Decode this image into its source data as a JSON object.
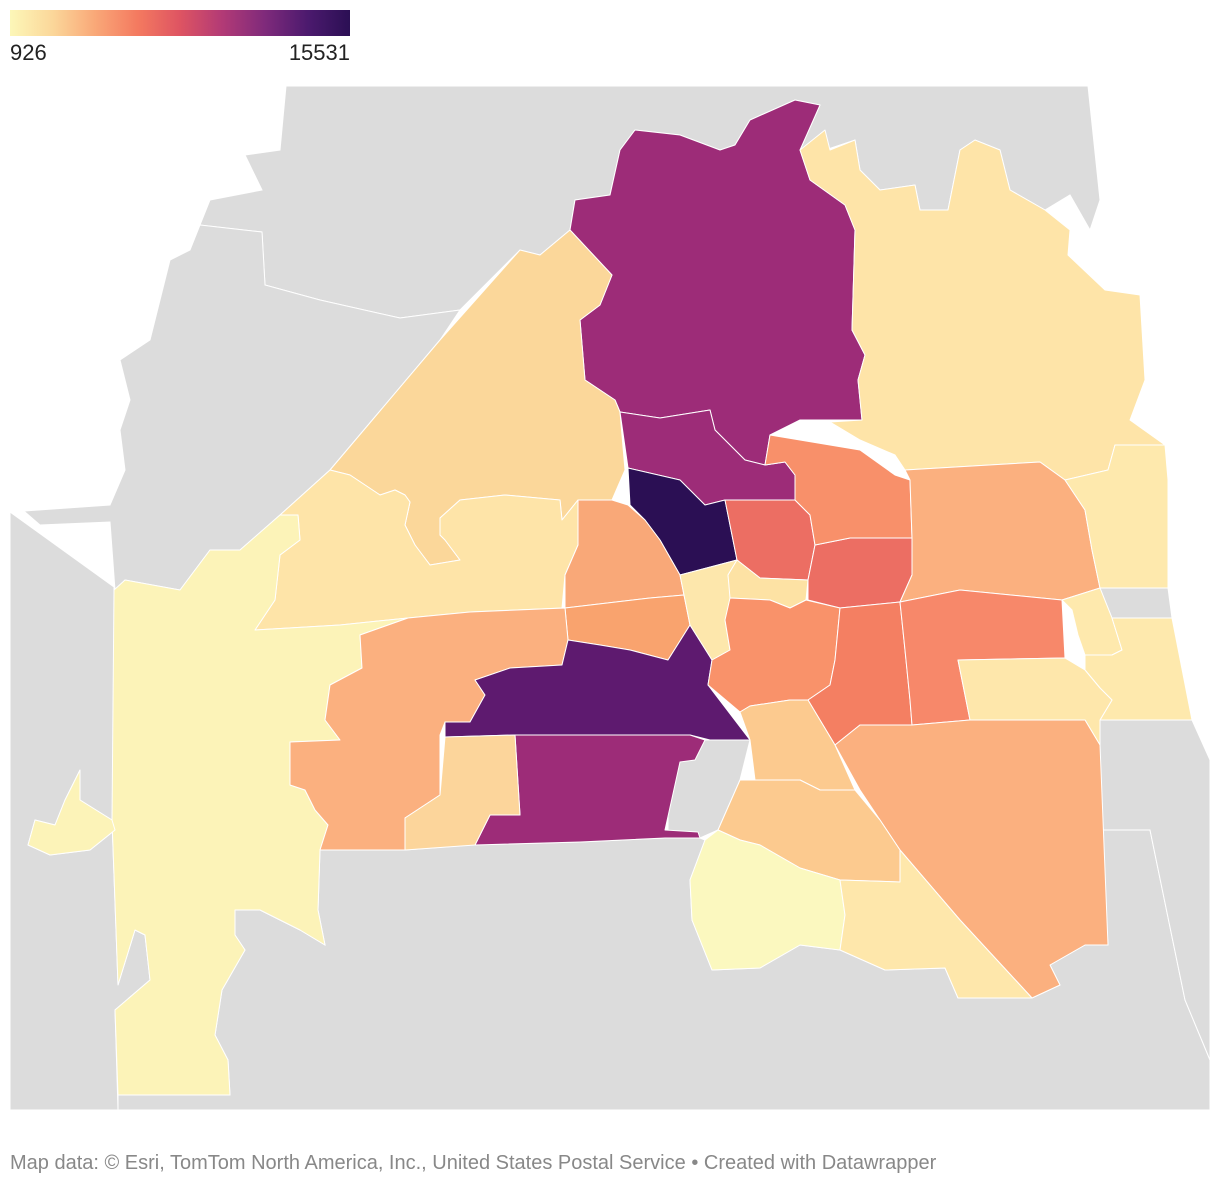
{
  "legend": {
    "min_label": "926",
    "max_label": "15531",
    "min_value": 926,
    "max_value": 15531,
    "gradient": [
      "#fcf7b8",
      "#fbd79a",
      "#f9a878",
      "#f47a60",
      "#de5462",
      "#b23a76",
      "#7f2a7b",
      "#4c1a6e",
      "#2b0f54"
    ]
  },
  "colors": {
    "background_region": "#dcdcdc",
    "region_stroke": "#ffffff"
  },
  "footer": {
    "source": "Map data: © Esri, TomTom North America, Inc., United States Postal Service",
    "separator": "•",
    "credit": "Created with Datawrapper"
  },
  "map_regions": [
    {
      "id": "north-large",
      "fill": "#9d2c78"
    },
    {
      "id": "northeast-large",
      "fill": "#fee4a8"
    },
    {
      "id": "northwest-diagonal",
      "fill": "#fbd79a"
    },
    {
      "id": "north-center-small",
      "fill": "#9d2c78"
    },
    {
      "id": "center-darkest",
      "fill": "#2b0f54"
    },
    {
      "id": "west-strip",
      "fill": "#fee4a8"
    },
    {
      "id": "west-large",
      "fill": "#fcf3b8"
    },
    {
      "id": "center-west-orange",
      "fill": "#f9a878"
    },
    {
      "id": "center-west-2",
      "fill": "#f9a36e"
    },
    {
      "id": "center-west-3",
      "fill": "#fbb07f"
    },
    {
      "id": "center-purple",
      "fill": "#5e1a6f"
    },
    {
      "id": "south-center-purple",
      "fill": "#9d2c78"
    },
    {
      "id": "south-center-light",
      "fill": "#fcd59b"
    },
    {
      "id": "southwest-orange",
      "fill": "#fbb07f"
    },
    {
      "id": "center-red",
      "fill": "#ec6e63"
    },
    {
      "id": "center-red-2",
      "fill": "#ec6e63"
    },
    {
      "id": "northeast-orange",
      "fill": "#f8906a"
    },
    {
      "id": "east-orange",
      "fill": "#fbb07f"
    },
    {
      "id": "center-small-yellow",
      "fill": "#fde7ac"
    },
    {
      "id": "center-small-yellow-2",
      "fill": "#fde2a4"
    },
    {
      "id": "center-orange-3",
      "fill": "#f9926a"
    },
    {
      "id": "center-red-3",
      "fill": "#f47f62"
    },
    {
      "id": "east-red",
      "fill": "#f7886a"
    },
    {
      "id": "east-coast-1",
      "fill": "#fee9ad"
    },
    {
      "id": "east-coast-2",
      "fill": "#fee9ad"
    },
    {
      "id": "east-coast-3",
      "fill": "#fee9ad"
    },
    {
      "id": "southeast-large",
      "fill": "#fbb07f"
    },
    {
      "id": "south-center-light-2",
      "fill": "#fcca8f"
    },
    {
      "id": "south-center-light-3",
      "fill": "#fcca8f"
    },
    {
      "id": "south-yellow-light",
      "fill": "#fbf8bf"
    },
    {
      "id": "south-yellow",
      "fill": "#fee7ab"
    },
    {
      "id": "southwest-small",
      "fill": "#fee7ab"
    },
    {
      "id": "west-island",
      "fill": "#fcf3b8"
    }
  ]
}
